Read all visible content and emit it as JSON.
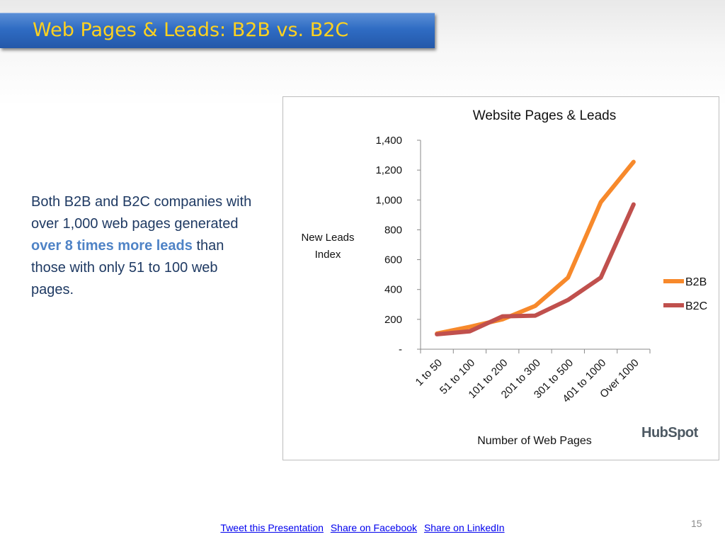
{
  "slide": {
    "title": "Web Pages & Leads: B2B vs. B2C",
    "body": {
      "part1": "Both B2B and B2C companies with over 1,000 web pages generated ",
      "highlight": "over 8 times more leads",
      "part2": " than those with only 51 to 100 web pages."
    },
    "page_number": "15",
    "logo_text": "HubSpot"
  },
  "footer": {
    "links": [
      "Tweet this Presentation",
      " Share on Facebook",
      " Share on LinkedIn"
    ]
  },
  "colors": {
    "title_bar": "#2f6cc3",
    "title_text": "#ffd21f",
    "body_text": "#1f3a63",
    "highlight": "#4f83c6",
    "b2b": "#f7892b",
    "b2c": "#c0504d"
  },
  "chart_data": {
    "type": "line",
    "title": "Website Pages & Leads",
    "xlabel": "Number of Web Pages",
    "ylabel": "New Leads Index",
    "categories": [
      "1 to 50",
      "51 to 100",
      "101 to 200",
      "201 to 300",
      "301 to 500",
      "401 to 1000",
      "Over 1000"
    ],
    "ylim": [
      0,
      1400
    ],
    "yticks": [
      0,
      200,
      400,
      600,
      800,
      1000,
      1200,
      1400
    ],
    "ytick_labels": [
      "-",
      "200",
      "400",
      "600",
      "800",
      "1,000",
      "1,200",
      "1,400"
    ],
    "grid": false,
    "legend_position": "right",
    "series": [
      {
        "name": "B2B",
        "color": "#f7892b",
        "values": [
          105,
          150,
          200,
          290,
          480,
          985,
          1255
        ]
      },
      {
        "name": "B2C",
        "color": "#c0504d",
        "values": [
          100,
          120,
          220,
          225,
          330,
          480,
          970
        ]
      }
    ]
  }
}
